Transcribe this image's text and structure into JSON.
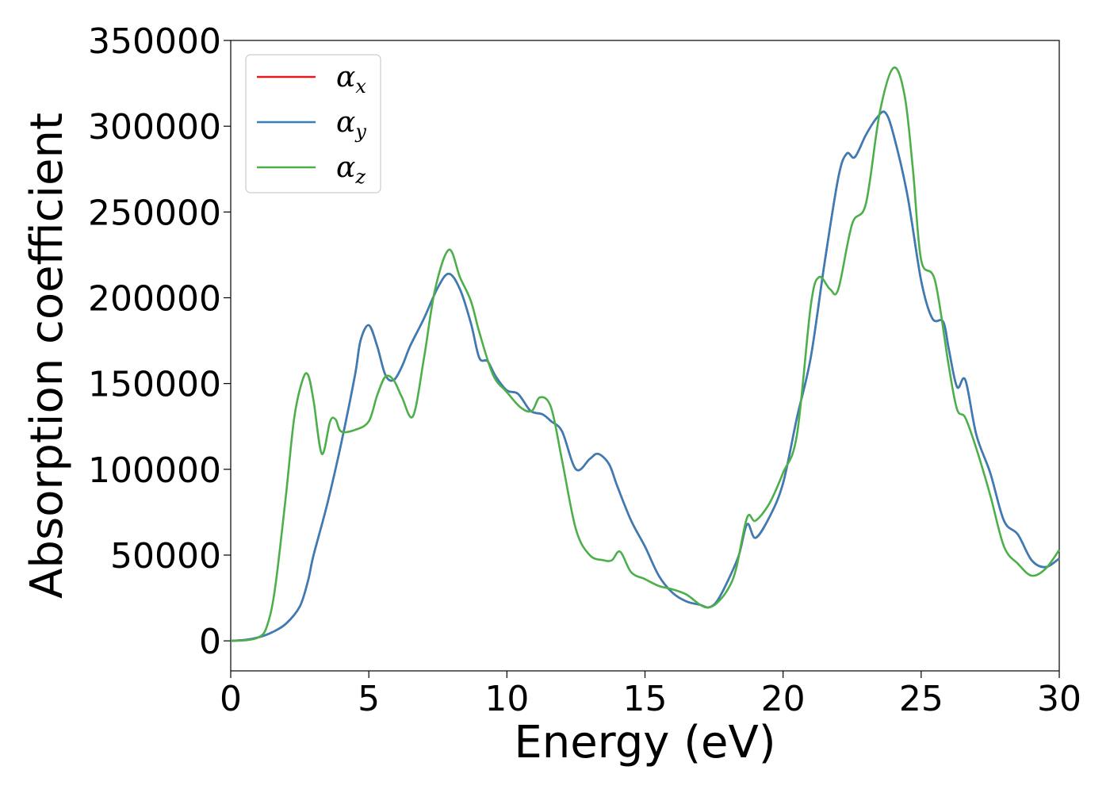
{
  "chart_data": {
    "type": "line",
    "title": "",
    "xlabel": "Energy (eV)",
    "ylabel": "Absorption coefficient",
    "xlim": [
      0,
      30
    ],
    "ylim": [
      -17500,
      350000
    ],
    "xticks": [
      0,
      5,
      10,
      15,
      20,
      25,
      30
    ],
    "yticks": [
      0,
      50000,
      100000,
      150000,
      200000,
      250000,
      300000,
      350000
    ],
    "grid": false,
    "legend_position": "top-left",
    "series": [
      {
        "name": "α",
        "subscript": "x",
        "color": "#e41a1c",
        "x": [
          0,
          0.5,
          1,
          1.5,
          2,
          2.5,
          2.8,
          3,
          3.5,
          4,
          4.5,
          4.7,
          5,
          5.3,
          5.6,
          5.9,
          6.2,
          6.5,
          7,
          7.5,
          7.9,
          8.3,
          8.7,
          9,
          9.3,
          9.6,
          10,
          10.4,
          10.8,
          11,
          11.3,
          11.6,
          12,
          12.5,
          13,
          13.3,
          13.7,
          14,
          14.5,
          15,
          15.5,
          16,
          16.5,
          17,
          17.3,
          17.6,
          18,
          18.4,
          18.7,
          19,
          19.5,
          20,
          20.5,
          21,
          21.5,
          22,
          22.3,
          22.6,
          23,
          23.4,
          23.7,
          24,
          24.5,
          25,
          25.4,
          25.8,
          26,
          26.3,
          26.6,
          27,
          27.5,
          28,
          28.5,
          29,
          29.5,
          30
        ],
        "y": [
          0,
          500,
          2000,
          5000,
          10000,
          20000,
          35000,
          50000,
          80000,
          115000,
          155000,
          175000,
          184000,
          172000,
          155000,
          152000,
          160000,
          172000,
          188000,
          206000,
          214000,
          205000,
          185000,
          165000,
          163000,
          154000,
          146000,
          144000,
          135000,
          133000,
          132000,
          128000,
          122000,
          100000,
          106000,
          109000,
          103000,
          90000,
          70000,
          55000,
          38000,
          28000,
          23000,
          21000,
          19500,
          23000,
          35000,
          50000,
          68000,
          60000,
          72000,
          92000,
          130000,
          165000,
          220000,
          270000,
          284000,
          282000,
          295000,
          305000,
          308000,
          295000,
          260000,
          210000,
          188000,
          186000,
          170000,
          148000,
          152000,
          120000,
          98000,
          70000,
          62000,
          47000,
          43000,
          48000
        ]
      },
      {
        "name": "α",
        "subscript": "y",
        "color": "#377eb8",
        "x": [
          0,
          0.5,
          1,
          1.5,
          2,
          2.5,
          2.8,
          3,
          3.5,
          4,
          4.5,
          4.7,
          5,
          5.3,
          5.6,
          5.9,
          6.2,
          6.5,
          7,
          7.5,
          7.9,
          8.3,
          8.7,
          9,
          9.3,
          9.6,
          10,
          10.4,
          10.8,
          11,
          11.3,
          11.6,
          12,
          12.5,
          13,
          13.3,
          13.7,
          14,
          14.5,
          15,
          15.5,
          16,
          16.5,
          17,
          17.3,
          17.6,
          18,
          18.4,
          18.7,
          19,
          19.5,
          20,
          20.5,
          21,
          21.5,
          22,
          22.3,
          22.6,
          23,
          23.4,
          23.7,
          24,
          24.5,
          25,
          25.4,
          25.8,
          26,
          26.3,
          26.6,
          27,
          27.5,
          28,
          28.5,
          29,
          29.5,
          30
        ],
        "y": [
          0,
          500,
          2000,
          5000,
          10000,
          20000,
          35000,
          50000,
          80000,
          115000,
          155000,
          175000,
          184000,
          172000,
          155000,
          152000,
          160000,
          172000,
          188000,
          206000,
          214000,
          205000,
          185000,
          165000,
          163000,
          154000,
          146000,
          144000,
          135000,
          133000,
          132000,
          128000,
          122000,
          100000,
          106000,
          109000,
          103000,
          90000,
          70000,
          55000,
          38000,
          28000,
          23000,
          21000,
          19500,
          23000,
          35000,
          50000,
          68000,
          60000,
          72000,
          92000,
          130000,
          165000,
          220000,
          270000,
          284000,
          282000,
          295000,
          305000,
          308000,
          295000,
          260000,
          210000,
          188000,
          186000,
          170000,
          148000,
          152000,
          120000,
          98000,
          70000,
          62000,
          47000,
          43000,
          48000
        ]
      },
      {
        "name": "α",
        "subscript": "z",
        "color": "#4daf4a",
        "x": [
          0,
          0.5,
          1,
          1.3,
          1.6,
          2,
          2.3,
          2.6,
          2.8,
          3,
          3.3,
          3.6,
          3.8,
          4,
          4.5,
          5,
          5.3,
          5.6,
          5.9,
          6.2,
          6.6,
          7,
          7.4,
          7.9,
          8.3,
          8.7,
          9,
          9.5,
          10,
          10.5,
          10.9,
          11.2,
          11.6,
          12,
          12.5,
          13,
          13.5,
          13.8,
          14.1,
          14.5,
          15,
          15.5,
          16,
          16.5,
          17,
          17.3,
          17.6,
          18,
          18.3,
          18.7,
          19,
          19.5,
          20,
          20.5,
          21,
          21.3,
          21.7,
          22,
          22.5,
          23,
          23.5,
          24,
          24.4,
          24.7,
          25,
          25.5,
          26,
          26.3,
          26.6,
          27,
          27.5,
          28,
          28.5,
          29,
          29.5,
          30
        ],
        "y": [
          0,
          300,
          2000,
          8000,
          30000,
          85000,
          130000,
          152000,
          155000,
          140000,
          109000,
          128000,
          129000,
          122000,
          123000,
          128000,
          143000,
          154000,
          152000,
          142000,
          131000,
          165000,
          205000,
          228000,
          212000,
          198000,
          180000,
          155000,
          145000,
          136000,
          134000,
          142000,
          136000,
          105000,
          65000,
          50000,
          47000,
          47000,
          52000,
          40000,
          36000,
          32000,
          30000,
          27000,
          21000,
          19500,
          22000,
          30000,
          42000,
          72000,
          70000,
          80000,
          98000,
          120000,
          195000,
          212000,
          205000,
          205000,
          243000,
          255000,
          308000,
          334000,
          318000,
          275000,
          222000,
          210000,
          160000,
          135000,
          130000,
          112000,
          85000,
          55000,
          45000,
          38000,
          42000,
          53000
        ]
      }
    ]
  }
}
